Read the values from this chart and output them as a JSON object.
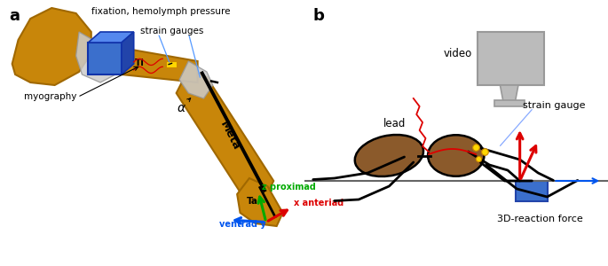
{
  "panel_a_label": "a",
  "panel_b_label": "b",
  "bg_color": "#ffffff",
  "gold_color": "#C8860A",
  "gold_dark": "#A06800",
  "blue_color": "#3B6FCC",
  "blue_dark": "#2244AA",
  "gray_color": "#999999",
  "gray_light": "#CCCCCC",
  "red_color": "#DD0000",
  "green_color": "#00AA00",
  "blue_arrow": "#0055EE",
  "brown_color": "#7B4A1E",
  "brown_body": "#8B5A2B",
  "yellow_color": "#FFD700",
  "black_color": "#000000",
  "label_fixation": "fixation, hemolymph pressure",
  "label_strain_gauges": "strain gauges",
  "label_myography": "myography",
  "label_alpha": "α",
  "label_Ti": "Ti",
  "label_Meta": "Meta",
  "label_Ta": "Ta",
  "label_z": "z proximad",
  "label_x": "x anteriad",
  "label_y": "ventrad y",
  "label_video": "video",
  "label_lead": "lead",
  "label_strain_gauge_b": "strain gauge",
  "label_3d": "3D-reaction force"
}
